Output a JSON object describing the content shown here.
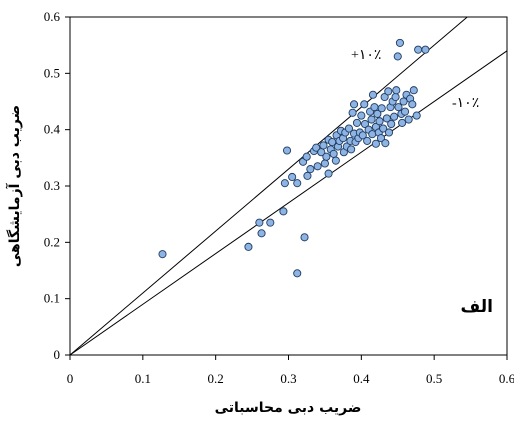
{
  "chart_data": {
    "type": "scatter",
    "title": "",
    "xlabel": "ضریب دبی محاسباتی",
    "ylabel": "ضریب دبی آزمایشگاهی",
    "xlim": [
      0,
      0.6
    ],
    "ylim": [
      0,
      0.6
    ],
    "x_ticks": [
      "0",
      "0.1",
      "0.2",
      "0.3",
      "0.4",
      "0.5",
      "0.6"
    ],
    "y_ticks": [
      "0",
      "0.1",
      "0.2",
      "0.3",
      "0.4",
      "0.5",
      "0.6"
    ],
    "grid": false,
    "panel_label": "الف",
    "reference_lines": [
      {
        "label": "+۱۰٪",
        "slope": 1.1
      },
      {
        "label": "-۱۰٪",
        "slope": 0.9
      }
    ],
    "points": [
      [
        0.127,
        0.179
      ],
      [
        0.245,
        0.192
      ],
      [
        0.26,
        0.235
      ],
      [
        0.263,
        0.216
      ],
      [
        0.275,
        0.235
      ],
      [
        0.293,
        0.255
      ],
      [
        0.295,
        0.305
      ],
      [
        0.298,
        0.363
      ],
      [
        0.305,
        0.316
      ],
      [
        0.312,
        0.145
      ],
      [
        0.312,
        0.305
      ],
      [
        0.32,
        0.343
      ],
      [
        0.322,
        0.209
      ],
      [
        0.325,
        0.352
      ],
      [
        0.326,
        0.318
      ],
      [
        0.33,
        0.33
      ],
      [
        0.335,
        0.362
      ],
      [
        0.338,
        0.368
      ],
      [
        0.34,
        0.335
      ],
      [
        0.345,
        0.36
      ],
      [
        0.348,
        0.372
      ],
      [
        0.35,
        0.34
      ],
      [
        0.352,
        0.352
      ],
      [
        0.355,
        0.382
      ],
      [
        0.355,
        0.322
      ],
      [
        0.358,
        0.365
      ],
      [
        0.36,
        0.378
      ],
      [
        0.362,
        0.357
      ],
      [
        0.365,
        0.345
      ],
      [
        0.366,
        0.39
      ],
      [
        0.368,
        0.37
      ],
      [
        0.37,
        0.38
      ],
      [
        0.372,
        0.398
      ],
      [
        0.375,
        0.385
      ],
      [
        0.376,
        0.36
      ],
      [
        0.378,
        0.395
      ],
      [
        0.38,
        0.37
      ],
      [
        0.383,
        0.402
      ],
      [
        0.385,
        0.38
      ],
      [
        0.386,
        0.365
      ],
      [
        0.388,
        0.43
      ],
      [
        0.39,
        0.445
      ],
      [
        0.39,
        0.393
      ],
      [
        0.392,
        0.378
      ],
      [
        0.394,
        0.412
      ],
      [
        0.396,
        0.385
      ],
      [
        0.398,
        0.395
      ],
      [
        0.4,
        0.425
      ],
      [
        0.402,
        0.39
      ],
      [
        0.404,
        0.445
      ],
      [
        0.405,
        0.41
      ],
      [
        0.408,
        0.38
      ],
      [
        0.41,
        0.4
      ],
      [
        0.412,
        0.432
      ],
      [
        0.414,
        0.418
      ],
      [
        0.415,
        0.392
      ],
      [
        0.416,
        0.462
      ],
      [
        0.418,
        0.44
      ],
      [
        0.42,
        0.375
      ],
      [
        0.42,
        0.405
      ],
      [
        0.422,
        0.428
      ],
      [
        0.424,
        0.395
      ],
      [
        0.425,
        0.415
      ],
      [
        0.427,
        0.385
      ],
      [
        0.428,
        0.438
      ],
      [
        0.43,
        0.402
      ],
      [
        0.432,
        0.458
      ],
      [
        0.433,
        0.376
      ],
      [
        0.435,
        0.42
      ],
      [
        0.437,
        0.468
      ],
      [
        0.438,
        0.395
      ],
      [
        0.44,
        0.44
      ],
      [
        0.441,
        0.41
      ],
      [
        0.443,
        0.45
      ],
      [
        0.445,
        0.423
      ],
      [
        0.447,
        0.458
      ],
      [
        0.448,
        0.47
      ],
      [
        0.45,
        0.53
      ],
      [
        0.451,
        0.44
      ],
      [
        0.453,
        0.554
      ],
      [
        0.455,
        0.428
      ],
      [
        0.456,
        0.412
      ],
      [
        0.458,
        0.45
      ],
      [
        0.46,
        0.432
      ],
      [
        0.462,
        0.462
      ],
      [
        0.465,
        0.418
      ],
      [
        0.467,
        0.455
      ],
      [
        0.47,
        0.445
      ],
      [
        0.472,
        0.47
      ],
      [
        0.476,
        0.425
      ],
      [
        0.478,
        0.542
      ],
      [
        0.488,
        0.542
      ]
    ]
  }
}
